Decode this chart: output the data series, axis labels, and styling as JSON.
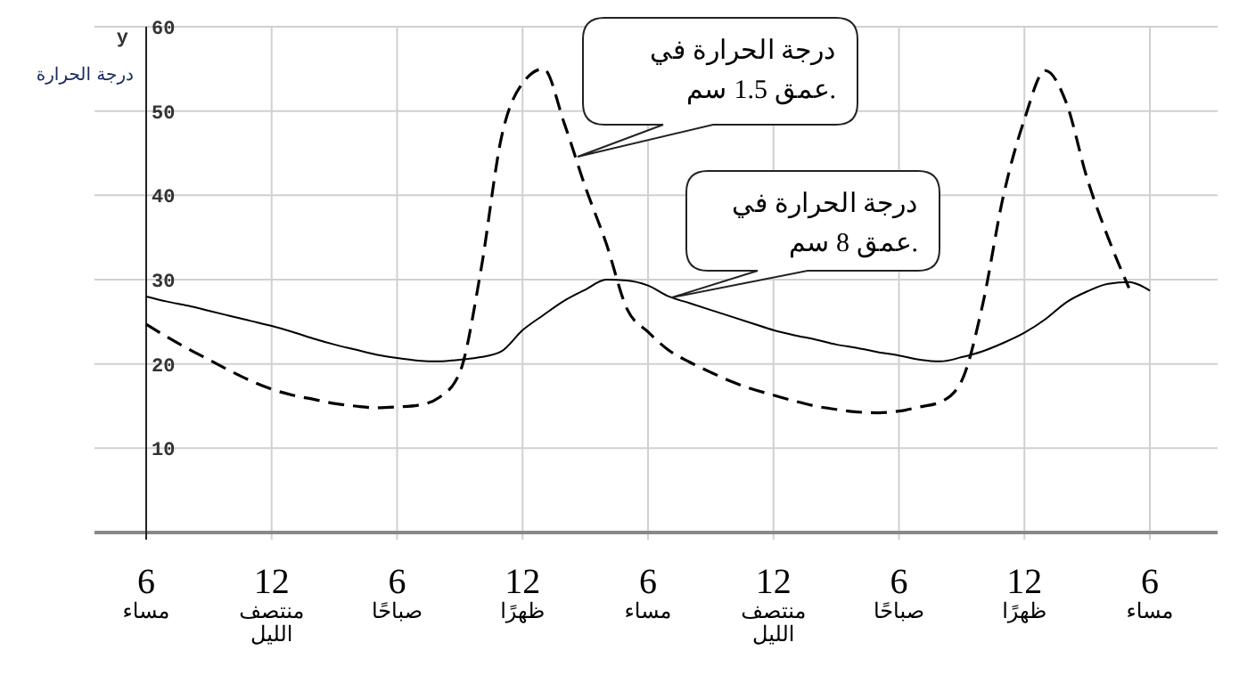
{
  "chart_data": {
    "type": "line",
    "ylabel": "درجة الحرارة",
    "ylim": [
      0,
      60
    ],
    "yticks": [
      10,
      20,
      30,
      40,
      50,
      60
    ],
    "categories": [
      "6\nمساء",
      null,
      null,
      null,
      null,
      null,
      "12\nمنتصف\nالليل",
      null,
      null,
      null,
      null,
      null,
      "6\nصباحًا",
      null,
      null,
      null,
      null,
      null,
      "12\nظهرًا",
      null,
      null,
      null,
      null,
      null,
      "6\nمساء",
      null,
      null,
      null,
      null,
      null,
      "12\nمنتصف\nالليل",
      null,
      null,
      null,
      null,
      null,
      "6\nصباحًا",
      null,
      null,
      null,
      null,
      null,
      "12\nظهرًا",
      null,
      null,
      null,
      null,
      null,
      "6\nمساء"
    ],
    "grid": true,
    "series": [
      {
        "color": "#000000",
        "line_style": "solid",
        "values": [
          28,
          27.4,
          26.9,
          26.3,
          25.7,
          25.1,
          24.5,
          23.8,
          23,
          22.3,
          21.7,
          21.1,
          20.7,
          20.4,
          20.3,
          20.5,
          20.8,
          21.5,
          24,
          25.8,
          27.5,
          28.8,
          30,
          29.9,
          29.3,
          28,
          27.2,
          26.4,
          25.6,
          24.8,
          24,
          23.4,
          22.9,
          22.3,
          21.9,
          21.4,
          21,
          20.5,
          20.3,
          20.8,
          21.5,
          22.5,
          23.7,
          25.3,
          27.3,
          28.6,
          29.5,
          29.7,
          28.7
        ]
      },
      {
        "color": "#000000",
        "line_style": "dashed",
        "values": [
          24.7,
          23.2,
          21.8,
          20.5,
          19.2,
          18,
          17,
          16.3,
          15.8,
          15.3,
          15,
          14.8,
          14.9,
          15.1,
          16,
          19,
          31,
          47,
          53.3,
          55,
          48.5,
          41,
          34.3,
          26.5,
          23.8,
          21.6,
          20.2,
          19,
          17.9,
          17,
          16.3,
          15.6,
          15,
          14.6,
          14.3,
          14.2,
          14.4,
          14.9,
          15.5,
          18,
          27,
          40,
          49,
          54.8,
          51,
          42,
          35,
          29,
          null
        ]
      }
    ],
    "annotations": [
      "y",
      "درجة الحرارة في\nعمق 1.5 سم.",
      "درجة الحرارة في\nعمق 8 سم."
    ]
  }
}
